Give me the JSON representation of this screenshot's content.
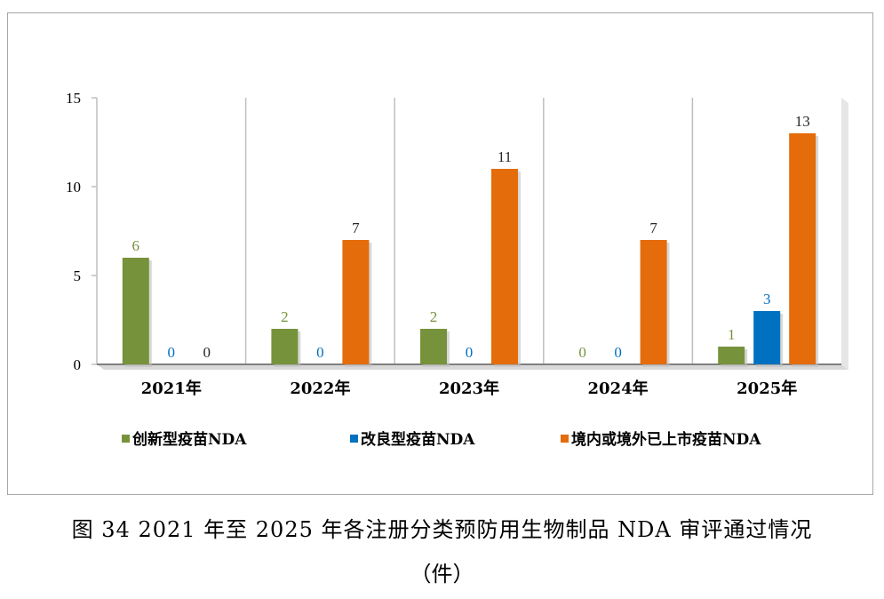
{
  "caption": {
    "line1": "图 34   2021 年至 2025 年各注册分类预防用生物制品 NDA 审评通过情况",
    "line2": "（件）"
  },
  "chart_data": {
    "type": "bar",
    "categories": [
      "2021年",
      "2022年",
      "2023年",
      "2024年",
      "2025年"
    ],
    "series": [
      {
        "name": "创新型疫苗NDA",
        "color": "#76933c",
        "values": [
          6,
          2,
          2,
          0,
          1
        ]
      },
      {
        "name": "改良型疫苗NDA",
        "color": "#0070c0",
        "values": [
          0,
          0,
          0,
          0,
          3
        ]
      },
      {
        "name": "境内或境外已上市疫苗NDA",
        "color": "#e46c0a",
        "values": [
          0,
          7,
          11,
          7,
          13
        ]
      }
    ],
    "label_colors": [
      "#76933c",
      "#0070c0",
      "#262626"
    ],
    "ylim": [
      0,
      15
    ],
    "yticks": [
      0,
      5,
      10,
      15
    ],
    "legend_position": "bottom",
    "grid": false
  }
}
